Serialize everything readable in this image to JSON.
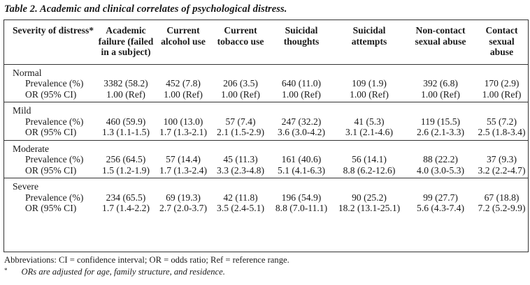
{
  "caption": "Table 2. Academic and clinical correlates of psychological distress.",
  "headers": [
    "Severity of distress*",
    "Academic failure (failed in a subject)",
    "Current alcohol use",
    "Current tobacco use",
    "Suicidal thoughts",
    "Suicidal attempts",
    "Non-contact sexual abuse",
    "Contact sexual abuse"
  ],
  "row_labels": {
    "prevalence": "Prevalence (%)",
    "or": "OR (95% CI)"
  },
  "groups": [
    {
      "name": "Normal",
      "prevalence": [
        "3382 (58.2)",
        "452 (7.8)",
        "206 (3.5)",
        "640 (11.0)",
        "109 (1.9)",
        "392 (6.8)",
        "170 (2.9)"
      ],
      "or": [
        "1.00 (Ref)",
        "1.00 (Ref)",
        "1.00 (Ref)",
        "1.00 (Ref)",
        "1.00 (Ref)",
        "1.00 (Ref)",
        "1.00 (Ref)"
      ]
    },
    {
      "name": "Mild",
      "prevalence": [
        "460 (59.9)",
        "100 (13.0)",
        "57 (7.4)",
        "247 (32.2)",
        "41 (5.3)",
        "119 (15.5)",
        "55 (7.2)"
      ],
      "or": [
        "1.3 (1.1-1.5)",
        "1.7 (1.3-2.1)",
        "2.1 (1.5-2.9)",
        "3.6 (3.0-4.2)",
        "3.1 (2.1-4.6)",
        "2.6 (2.1-3.3)",
        "2.5 (1.8-3.4)"
      ]
    },
    {
      "name": "Moderate",
      "prevalence": [
        "256 (64.5)",
        "57 (14.4)",
        "45 (11.3)",
        "161 (40.6)",
        "56 (14.1)",
        "88 (22.2)",
        "37 (9.3)"
      ],
      "or": [
        "1.5 (1.2-1.9)",
        "1.7 (1.3-2.4)",
        "3.3 (2.3-4.8)",
        "5.1 (4.1-6.3)",
        "8.8 (6.2-12.6)",
        "4.0 (3.0-5.3)",
        "3.2 (2.2-4.7)"
      ]
    },
    {
      "name": "Severe",
      "prevalence": [
        "234 (65.5)",
        "69 (19.3)",
        "42 (11.8)",
        "196 (54.9)",
        "90 (25.2)",
        "99 (27.7)",
        "67 (18.8)"
      ],
      "or": [
        "1.7 (1.4-2.2)",
        "2.7 (2.0-3.7)",
        "3.5 (2.4-5.1)",
        "8.8 (7.0-11.1)",
        "18.2 (13.1-25.1)",
        "5.6 (4.3-7.4)",
        "7.2 (5.2-9.9)"
      ]
    }
  ],
  "footnotes": {
    "abbreviations": "Abbreviations: CI = confidence interval; OR = odds ratio; Ref = reference range.",
    "star_mark": "*",
    "star_note": "ORs are adjusted for age, family structure, and residence."
  }
}
